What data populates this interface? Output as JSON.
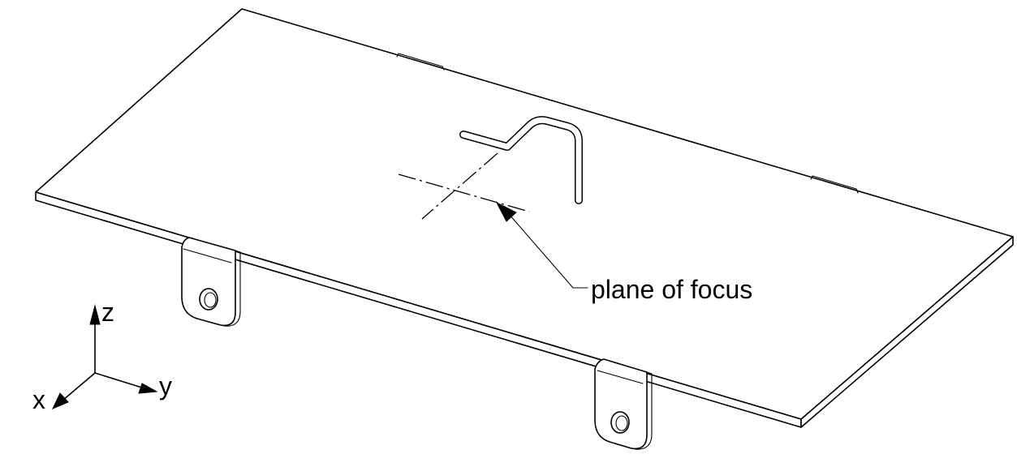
{
  "callout": {
    "label": "plane of focus"
  },
  "axes": {
    "z_label": "z",
    "y_label": "y",
    "x_label": "x"
  },
  "colors": {
    "line": "#000000",
    "background": "#ffffff"
  }
}
